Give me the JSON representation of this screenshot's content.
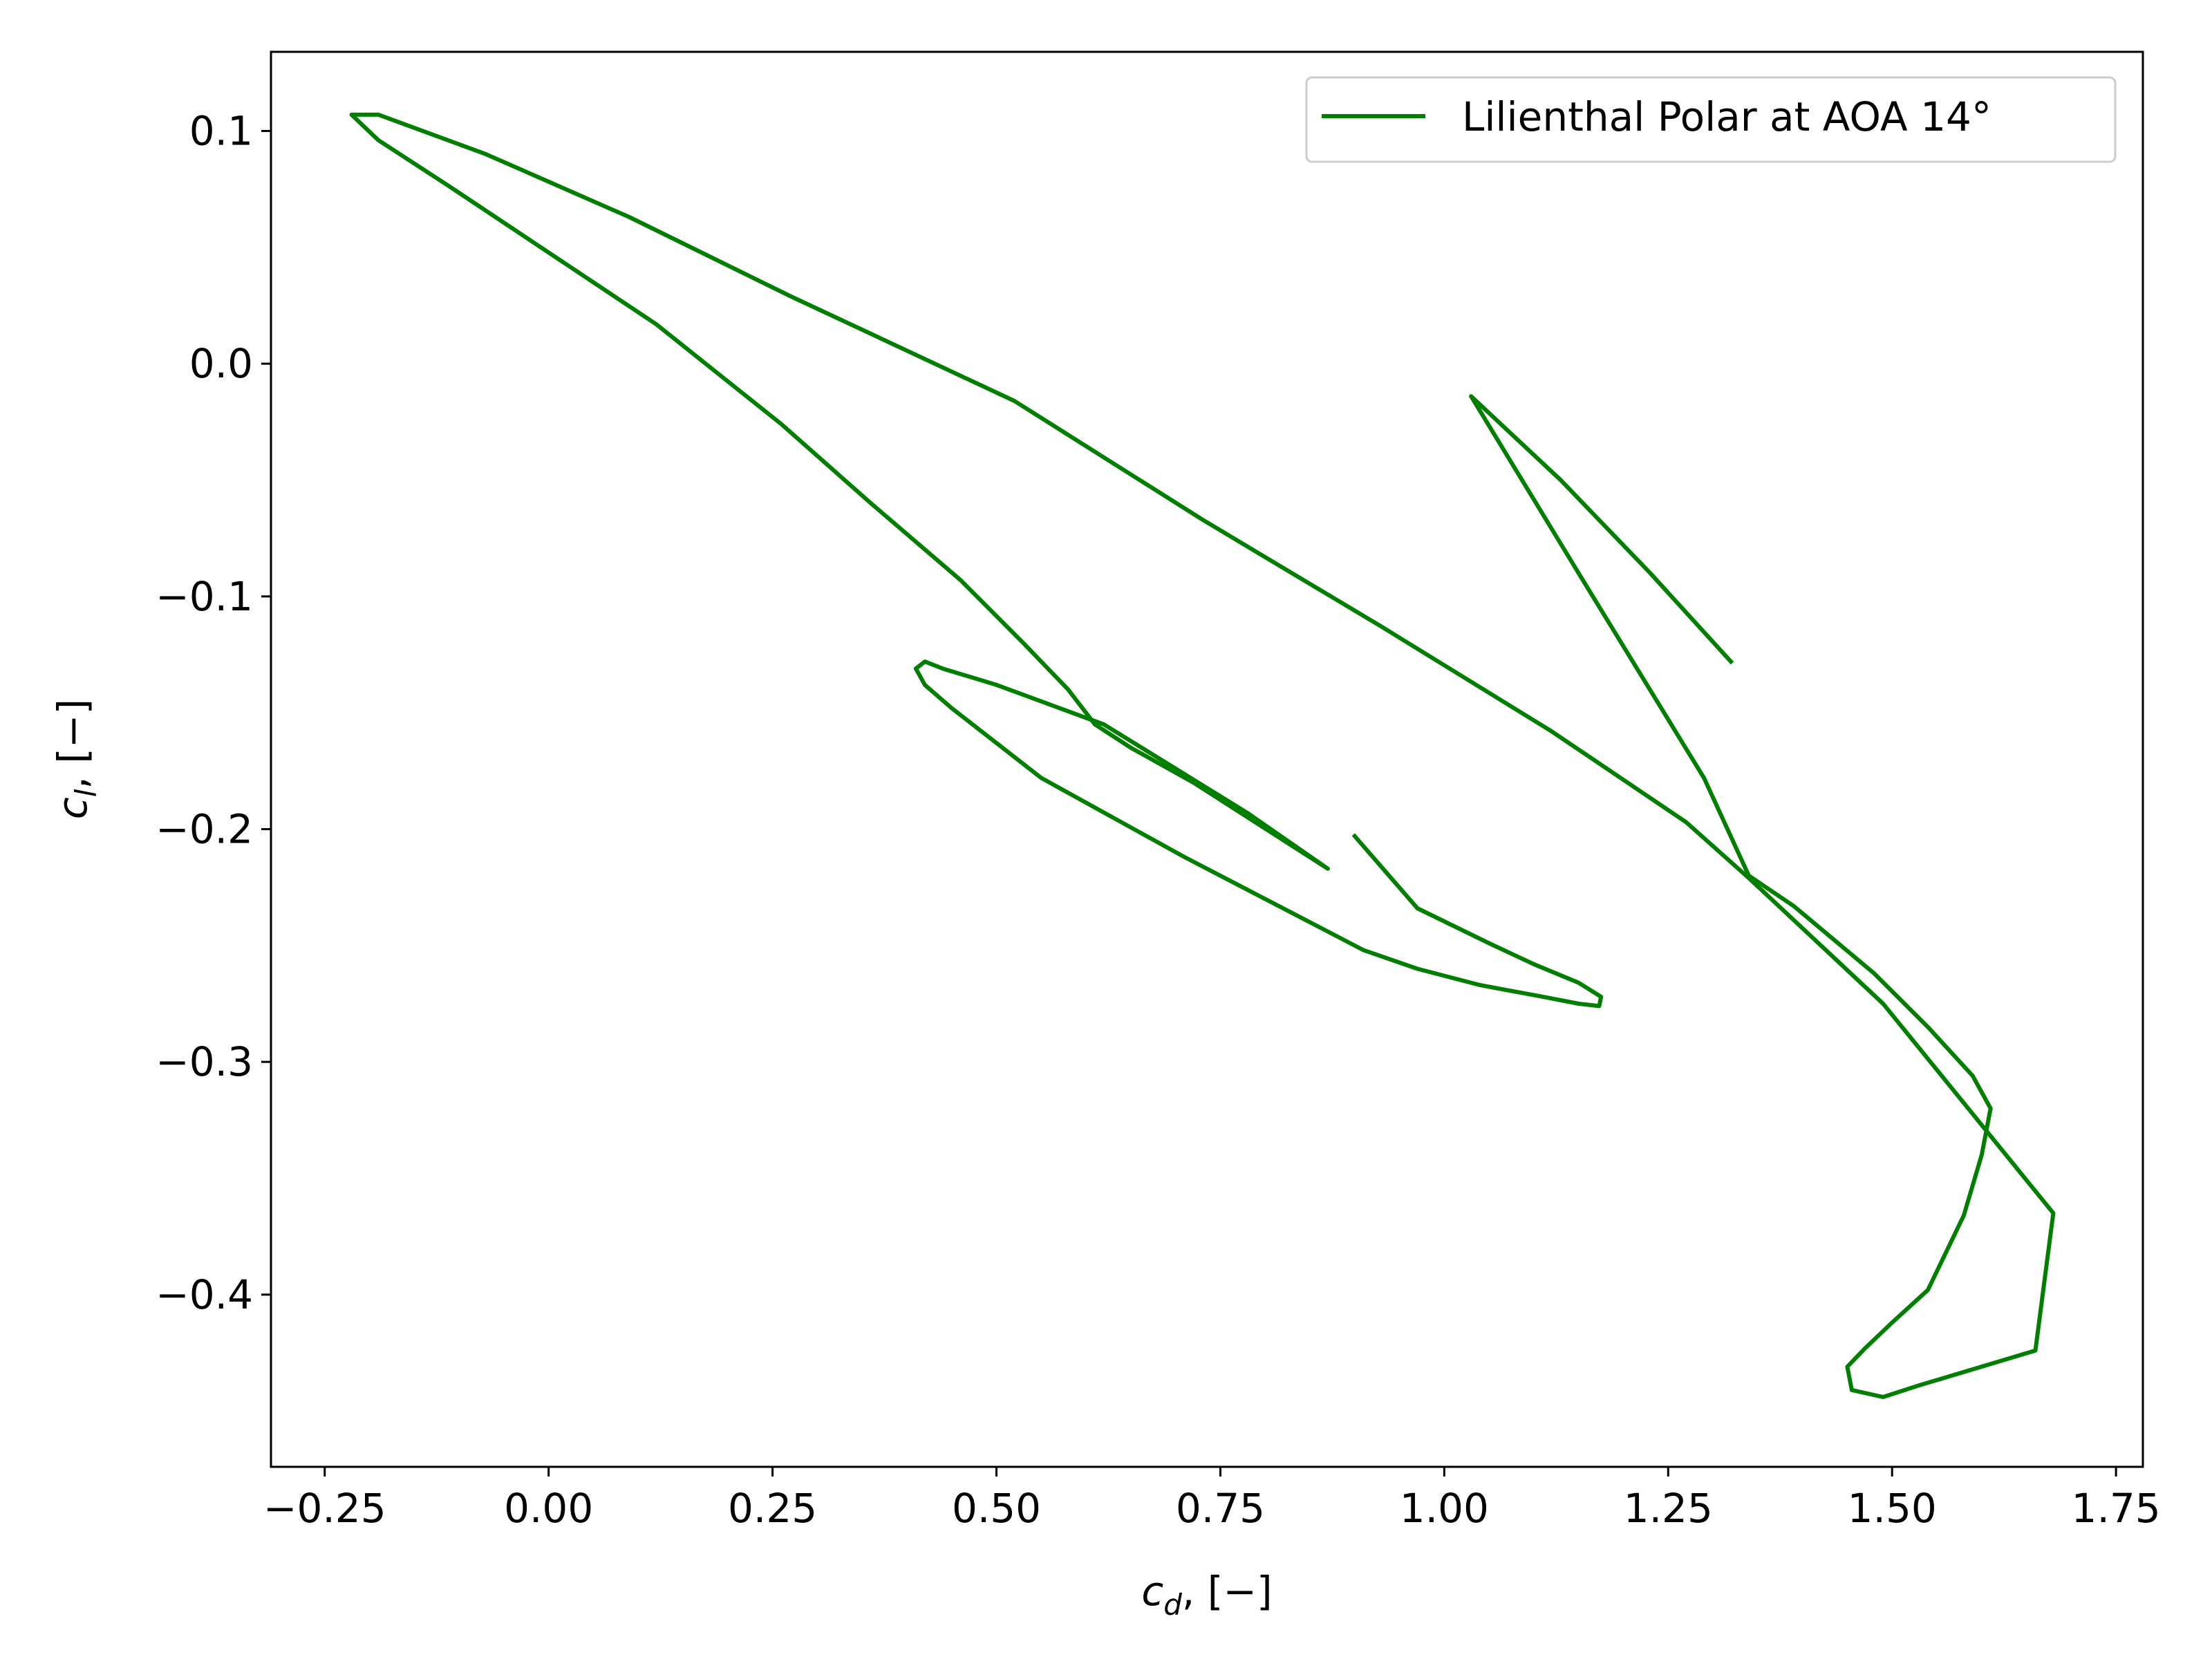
{
  "chart_data": {
    "type": "line",
    "title": "",
    "xlabel": "c_d, [−]",
    "ylabel": "c_l, [−]",
    "xlabel_parts": {
      "symbol": "c",
      "sub": "d",
      "unit": ", [−]"
    },
    "ylabel_parts": {
      "symbol": "c",
      "sub": "l",
      "unit": ", [−]"
    },
    "xlim": [
      -0.31,
      1.78
    ],
    "ylim": [
      -0.474,
      0.134
    ],
    "x_ticks": [
      -0.25,
      0.0,
      0.25,
      0.5,
      0.75,
      1.0,
      1.25,
      1.5,
      1.75
    ],
    "x_tick_labels": [
      "−0.25",
      "0.00",
      "0.25",
      "0.50",
      "0.75",
      "1.00",
      "1.25",
      "1.50",
      "1.75"
    ],
    "y_ticks": [
      0.1,
      0.0,
      -0.1,
      -0.2,
      -0.3,
      -0.4
    ],
    "y_tick_labels": [
      "0.1",
      "0.0",
      "−0.1",
      "−0.2",
      "−0.3",
      "−0.4"
    ],
    "grid": false,
    "legend_position": "top-right",
    "series": [
      {
        "name": "Lilienthal Polar at AOA 14°",
        "color": "#007f00",
        "x": [
          1.32,
          1.23,
          1.13,
          1.03,
          1.15,
          1.29,
          1.34,
          1.39,
          1.48,
          1.54,
          1.59,
          1.61,
          1.6,
          1.58,
          1.56,
          1.54,
          1.5,
          1.47,
          1.45,
          1.455,
          1.49,
          1.53,
          1.66,
          1.68,
          1.49,
          1.34,
          1.27,
          1.12,
          0.93,
          0.73,
          0.52,
          0.37,
          0.27,
          0.09,
          -0.07,
          -0.19,
          -0.22,
          -0.19,
          -0.11,
          0.12,
          0.26,
          0.36,
          0.46,
          0.53,
          0.58,
          0.61,
          0.65,
          0.72,
          0.87,
          0.78,
          0.62,
          0.5,
          0.44,
          0.42,
          0.41,
          0.42,
          0.45,
          0.55,
          0.71,
          0.86,
          0.91,
          0.97,
          1.04,
          1.11,
          1.15,
          1.173,
          1.175,
          1.15,
          1.1,
          1.05,
          0.97,
          0.9
        ],
        "y": [
          -0.128,
          -0.09,
          -0.05,
          -0.014,
          -0.09,
          -0.178,
          -0.22,
          -0.233,
          -0.262,
          -0.285,
          -0.306,
          -0.32,
          -0.34,
          -0.366,
          -0.382,
          -0.398,
          -0.412,
          -0.423,
          -0.431,
          -0.441,
          -0.444,
          -0.439,
          -0.424,
          -0.365,
          -0.275,
          -0.221,
          -0.197,
          -0.158,
          -0.113,
          -0.067,
          -0.016,
          0.011,
          0.029,
          0.063,
          0.09,
          0.107,
          0.107,
          0.096,
          0.076,
          0.017,
          -0.026,
          -0.06,
          -0.093,
          -0.12,
          -0.14,
          -0.155,
          -0.165,
          -0.18,
          -0.217,
          -0.193,
          -0.155,
          -0.138,
          -0.131,
          -0.128,
          -0.131,
          -0.138,
          -0.148,
          -0.178,
          -0.212,
          -0.242,
          -0.252,
          -0.26,
          -0.267,
          -0.272,
          -0.275,
          -0.276,
          -0.272,
          -0.266,
          -0.258,
          -0.249,
          -0.234,
          -0.203
        ]
      }
    ]
  }
}
